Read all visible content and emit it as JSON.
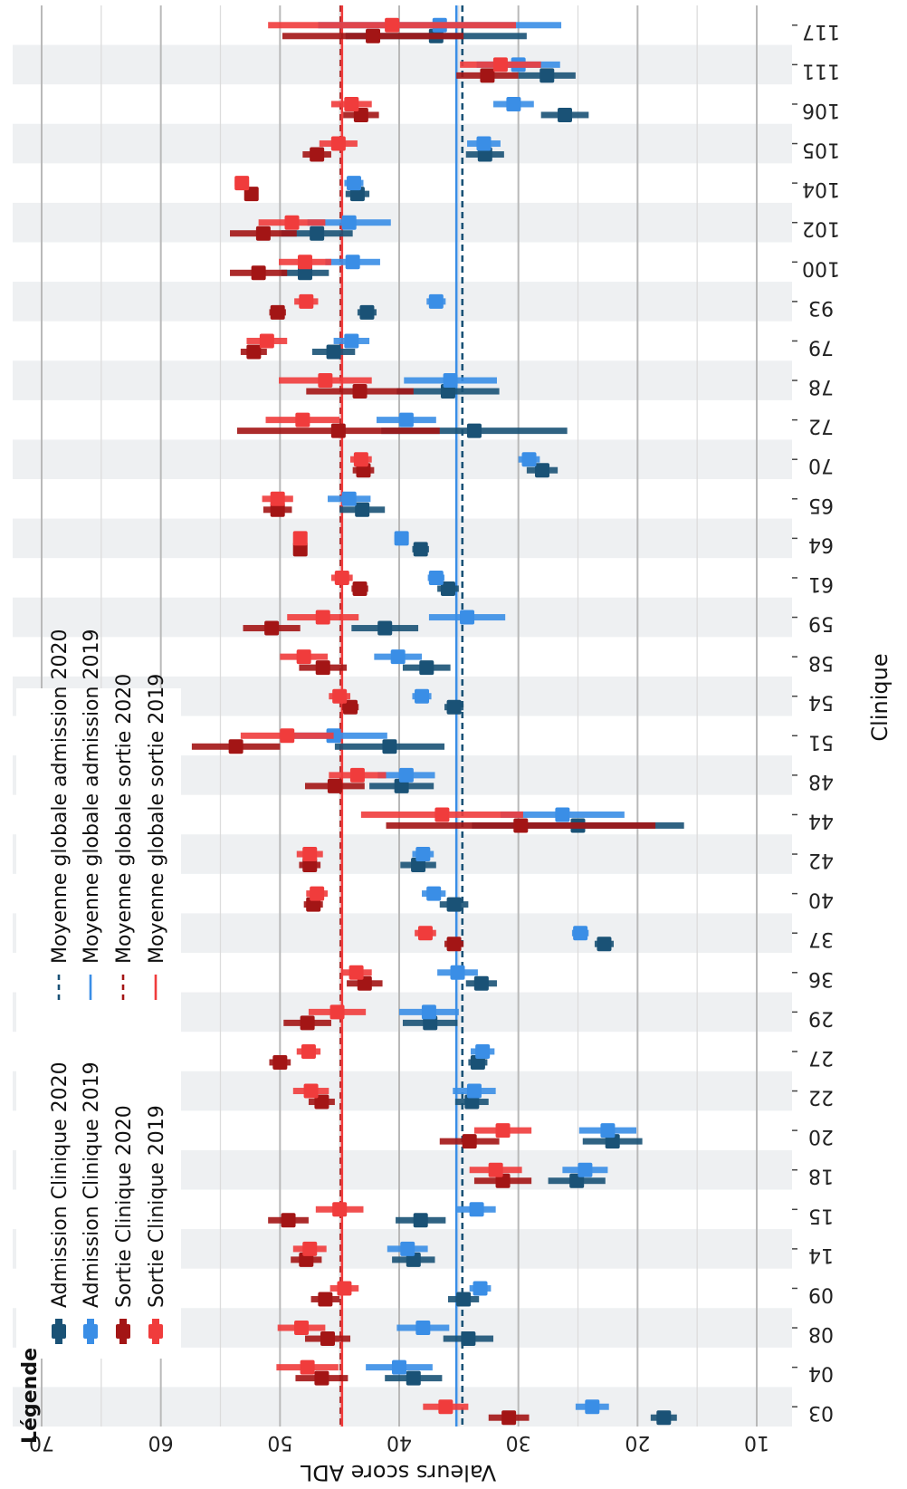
{
  "chart_data": {
    "type": "errorbar",
    "orientation": "rotated-90",
    "xlabel": "Clinique",
    "ylabel": "Valeurs score ADL",
    "ylim": [
      5,
      72
    ],
    "yticks": [
      10,
      20,
      30,
      40,
      50,
      60,
      70
    ],
    "categories": [
      "03",
      "04",
      "08",
      "09",
      "14",
      "15",
      "18",
      "20",
      "22",
      "27",
      "29",
      "36",
      "37",
      "40",
      "42",
      "44",
      "48",
      "51",
      "54",
      "58",
      "59",
      "61",
      "64",
      "65",
      "70",
      "72",
      "78",
      "79",
      "93",
      "100",
      "102",
      "104",
      "105",
      "106",
      "111",
      "117"
    ],
    "band_style": "alternating",
    "series": [
      {
        "name": "Admission Clinique 2020",
        "color": "#1a5276",
        "values": [
          17.8,
          38.8,
          34.2,
          34.6,
          38.8,
          38.2,
          25.1,
          22.1,
          33.9,
          33.4,
          37.4,
          33.1,
          22.8,
          35.4,
          38.4,
          25.0,
          39.8,
          40.8,
          35.4,
          37.7,
          41.2,
          35.9,
          38.2,
          43.1,
          28.0,
          33.7,
          35.9,
          45.5,
          42.7,
          47.9,
          46.9,
          43.5,
          32.8,
          26.1,
          27.6,
          36.9
        ],
        "lower": [
          16.7,
          36.4,
          32.1,
          33.3,
          37.0,
          36.1,
          22.7,
          19.6,
          32.5,
          32.6,
          35.1,
          31.8,
          22.0,
          34.2,
          36.9,
          16.1,
          37.1,
          36.2,
          34.6,
          35.7,
          38.4,
          35.0,
          37.5,
          41.2,
          26.7,
          25.9,
          31.6,
          43.7,
          41.9,
          45.9,
          43.9,
          42.5,
          31.2,
          24.1,
          25.2,
          29.3
        ],
        "upper": [
          18.9,
          41.2,
          36.3,
          35.9,
          40.6,
          40.3,
          27.5,
          24.6,
          35.3,
          34.2,
          39.7,
          34.4,
          23.6,
          36.6,
          39.9,
          33.9,
          42.5,
          45.4,
          36.2,
          39.7,
          44.0,
          36.8,
          38.9,
          45.0,
          29.3,
          41.5,
          40.2,
          47.3,
          43.5,
          49.9,
          49.9,
          44.5,
          34.4,
          28.1,
          30.0,
          44.5
        ]
      },
      {
        "name": "Admission Clinique 2019",
        "color": "#3a8ee6",
        "values": [
          23.8,
          40.0,
          38.0,
          33.2,
          39.3,
          33.5,
          24.4,
          22.5,
          33.7,
          33.0,
          37.5,
          35.1,
          24.8,
          37.1,
          38.0,
          26.3,
          39.4,
          45.5,
          38.1,
          40.1,
          34.3,
          36.9,
          39.8,
          44.2,
          29.1,
          39.4,
          35.7,
          44.0,
          36.9,
          43.9,
          44.2,
          43.8,
          32.9,
          30.4,
          30.0,
          36.6
        ],
        "lower": [
          22.4,
          37.2,
          35.8,
          32.3,
          37.6,
          31.9,
          22.5,
          20.1,
          31.9,
          32.0,
          35.0,
          33.4,
          24.1,
          36.1,
          37.1,
          21.1,
          37.0,
          41.0,
          37.3,
          38.1,
          31.1,
          36.2,
          39.2,
          42.4,
          28.2,
          36.9,
          31.8,
          42.5,
          36.1,
          41.6,
          40.7,
          43.0,
          31.5,
          28.7,
          26.5,
          26.4
        ],
        "upper": [
          25.2,
          42.8,
          40.2,
          34.1,
          41.0,
          35.1,
          26.3,
          24.9,
          35.5,
          34.0,
          40.0,
          36.8,
          25.5,
          38.1,
          38.9,
          31.5,
          41.8,
          50.0,
          38.9,
          42.1,
          37.5,
          37.6,
          40.4,
          46.0,
          30.0,
          41.9,
          39.6,
          45.5,
          37.7,
          46.2,
          47.7,
          44.6,
          34.3,
          32.1,
          33.5,
          46.8
        ]
      },
      {
        "name": "Sortie Clinique 2020",
        "color": "#a31515",
        "values": [
          30.8,
          46.5,
          46.0,
          46.2,
          47.8,
          49.3,
          31.3,
          34.1,
          46.5,
          50.0,
          47.7,
          42.9,
          35.4,
          47.2,
          47.5,
          29.8,
          45.4,
          53.7,
          44.1,
          46.4,
          50.7,
          43.3,
          48.3,
          50.2,
          43.0,
          45.1,
          43.3,
          52.2,
          50.2,
          51.8,
          51.4,
          52.4,
          46.9,
          43.2,
          32.6,
          42.2
        ],
        "lower": [
          29.1,
          44.3,
          44.1,
          45.0,
          46.5,
          47.6,
          28.9,
          31.6,
          45.4,
          49.1,
          45.7,
          41.4,
          34.6,
          46.4,
          46.6,
          18.5,
          42.9,
          50.0,
          43.4,
          44.4,
          48.3,
          42.6,
          47.8,
          49.0,
          42.1,
          36.6,
          38.8,
          51.1,
          49.5,
          49.4,
          48.6,
          52.0,
          45.7,
          41.7,
          30.0,
          34.6
        ],
        "upper": [
          32.5,
          48.7,
          47.9,
          47.4,
          49.1,
          51.0,
          33.7,
          36.6,
          47.6,
          50.9,
          49.7,
          44.4,
          36.2,
          48.0,
          48.4,
          41.1,
          47.9,
          57.4,
          44.8,
          48.4,
          53.1,
          44.0,
          48.8,
          51.4,
          43.9,
          53.6,
          47.8,
          53.3,
          50.9,
          54.2,
          54.2,
          52.8,
          48.1,
          44.7,
          35.2,
          49.8
        ]
      },
      {
        "name": "Sortie Clinique 2019",
        "color": "#f03c3c",
        "values": [
          36.1,
          47.7,
          48.2,
          44.6,
          47.5,
          45.0,
          31.9,
          31.3,
          47.4,
          47.6,
          45.2,
          43.6,
          37.8,
          46.9,
          47.5,
          36.4,
          43.5,
          49.4,
          45.0,
          48.0,
          46.4,
          44.8,
          48.3,
          50.2,
          43.2,
          48.1,
          46.2,
          51.1,
          47.8,
          47.9,
          49.0,
          53.2,
          45.1,
          44.0,
          31.5,
          40.6
        ],
        "lower": [
          34.2,
          45.1,
          46.2,
          43.4,
          46.1,
          43.0,
          29.7,
          28.9,
          45.9,
          46.6,
          42.8,
          42.3,
          36.9,
          46.0,
          46.4,
          29.6,
          41.1,
          45.5,
          44.1,
          46.0,
          43.4,
          43.9,
          47.8,
          48.9,
          42.3,
          45.0,
          42.3,
          49.4,
          46.8,
          45.7,
          46.2,
          52.6,
          43.5,
          42.3,
          28.1,
          30.2
        ],
        "upper": [
          38.0,
          50.3,
          50.2,
          45.8,
          48.9,
          47.0,
          34.1,
          33.7,
          48.9,
          48.6,
          47.6,
          44.9,
          38.7,
          47.8,
          48.6,
          43.2,
          45.9,
          53.3,
          45.9,
          50.0,
          49.4,
          45.7,
          48.8,
          51.5,
          44.1,
          51.2,
          50.1,
          52.8,
          48.8,
          50.1,
          51.8,
          53.8,
          46.7,
          45.7,
          34.9,
          51.0
        ]
      }
    ],
    "reference_lines": [
      {
        "name": "Moyenne globale admission 2020",
        "value": 34.7,
        "color": "#1a5276",
        "dash": "dashed"
      },
      {
        "name": "Moyenne globale admission 2019",
        "value": 35.2,
        "color": "#3a8ee6",
        "dash": "solid"
      },
      {
        "name": "Moyenne globale sortie 2020",
        "value": 44.9,
        "color": "#a31515",
        "dash": "dashed"
      },
      {
        "name": "Moyenne globale sortie 2019",
        "value": 44.8,
        "color": "#f03c3c",
        "dash": "solid"
      }
    ],
    "legend": {
      "title": "Légende",
      "placement": "bottom-left",
      "entries": [
        "Admission Clinique 2020",
        "Admission Clinique 2019",
        "Sortie Clinique 2020",
        "Sortie Clinique 2019",
        "Moyenne globale admission 2020",
        "Moyenne globale admission 2019",
        "Moyenne globale sortie 2020",
        "Moyenne globale sortie 2019"
      ]
    }
  }
}
